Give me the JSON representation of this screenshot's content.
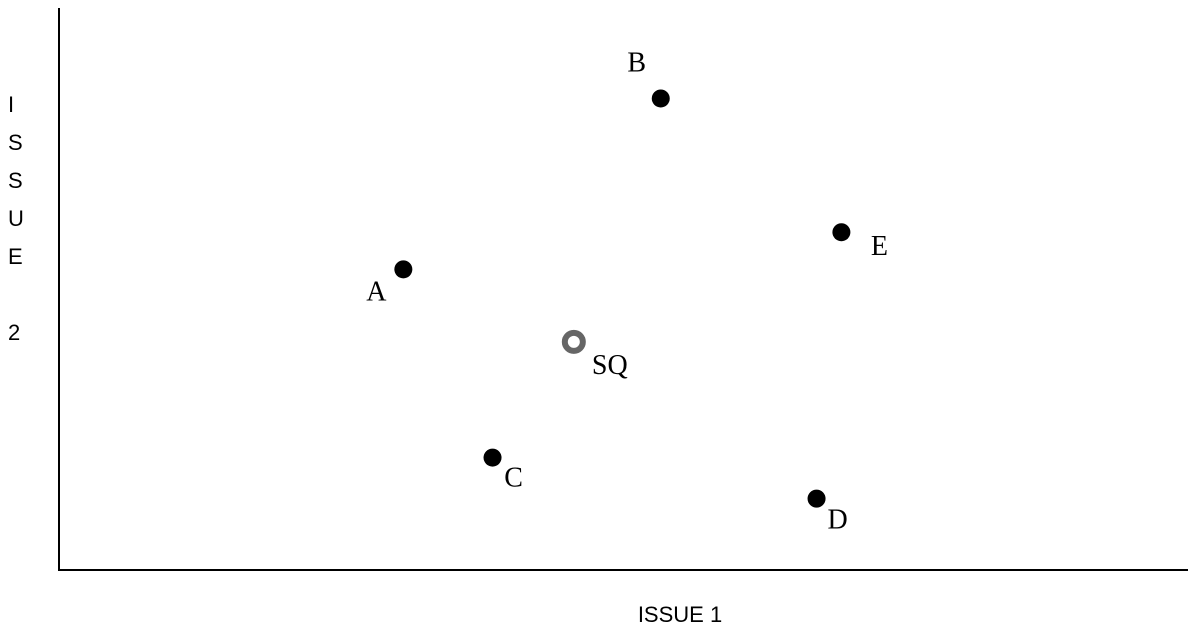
{
  "diagram": {
    "xlabel": "ISSUE 1",
    "ylabel_chars": [
      "I",
      "S",
      "S",
      "U",
      "E",
      "",
      "2"
    ]
  },
  "chart_data": {
    "type": "scatter",
    "xlabel": "ISSUE 1",
    "ylabel": "ISSUE 2",
    "xlim": [
      0,
      100
    ],
    "ylim": [
      0,
      100
    ],
    "grid": false,
    "points": [
      {
        "label": "A",
        "x": 30.5,
        "y": 53.5,
        "kind": "actor"
      },
      {
        "label": "B",
        "x": 53.3,
        "y": 83.9,
        "kind": "actor"
      },
      {
        "label": "C",
        "x": 38.4,
        "y": 20.0,
        "kind": "actor"
      },
      {
        "label": "D",
        "x": 67.1,
        "y": 12.7,
        "kind": "actor"
      },
      {
        "label": "E",
        "x": 69.3,
        "y": 60.1,
        "kind": "actor"
      },
      {
        "label": "SQ",
        "x": 45.6,
        "y": 40.6,
        "kind": "status-quo"
      }
    ],
    "colors": {
      "actor": "#000000",
      "status_quo": "#666666"
    }
  }
}
